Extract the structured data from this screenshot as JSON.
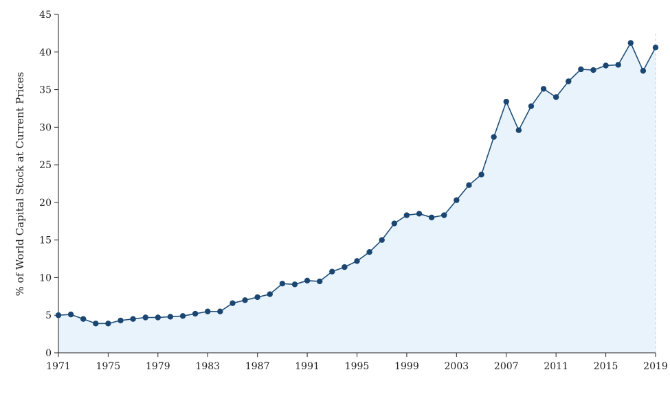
{
  "chart_data": {
    "type": "area",
    "title": "",
    "xlabel": "",
    "ylabel": "% of World Capital Stock at Current Prices",
    "xlim": [
      1971,
      2019
    ],
    "ylim": [
      0,
      45
    ],
    "x_ticks": [
      1971,
      1975,
      1979,
      1983,
      1987,
      1991,
      1995,
      1999,
      2003,
      2007,
      2011,
      2015,
      2019
    ],
    "y_ticks": [
      0,
      5,
      10,
      15,
      20,
      25,
      30,
      35,
      40,
      45
    ],
    "grid": false,
    "colors": {
      "line": "#1f4e79",
      "marker": "#1b4671",
      "fill": "#e8f3fc",
      "axis": "#222222",
      "end_marker": "#c8d0d8"
    },
    "series": [
      {
        "x": [
          1971,
          1972,
          1973,
          1974,
          1975,
          1976,
          1977,
          1978,
          1979,
          1980,
          1981,
          1982,
          1983,
          1984,
          1985,
          1986,
          1987,
          1988,
          1989,
          1990,
          1991,
          1992,
          1993,
          1994,
          1995,
          1996,
          1997,
          1998,
          1999,
          2000,
          2001,
          2002,
          2003,
          2004,
          2005,
          2006,
          2007,
          2008,
          2009,
          2010,
          2011,
          2012,
          2013,
          2014,
          2015,
          2016,
          2017,
          2018,
          2019
        ],
        "values": [
          5.0,
          5.1,
          4.5,
          3.9,
          3.9,
          4.3,
          4.5,
          4.7,
          4.7,
          4.8,
          4.9,
          5.2,
          5.5,
          5.5,
          6.6,
          7.0,
          7.4,
          7.8,
          9.2,
          9.1,
          9.6,
          9.5,
          10.8,
          11.4,
          12.2,
          13.4,
          15.0,
          17.2,
          18.3,
          18.5,
          18.0,
          18.3,
          20.3,
          22.3,
          23.7,
          28.7,
          33.4,
          29.6,
          32.8,
          35.1,
          34.0,
          36.1,
          37.7,
          37.6,
          38.2,
          38.3,
          41.2,
          37.5,
          40.6
        ]
      }
    ]
  }
}
